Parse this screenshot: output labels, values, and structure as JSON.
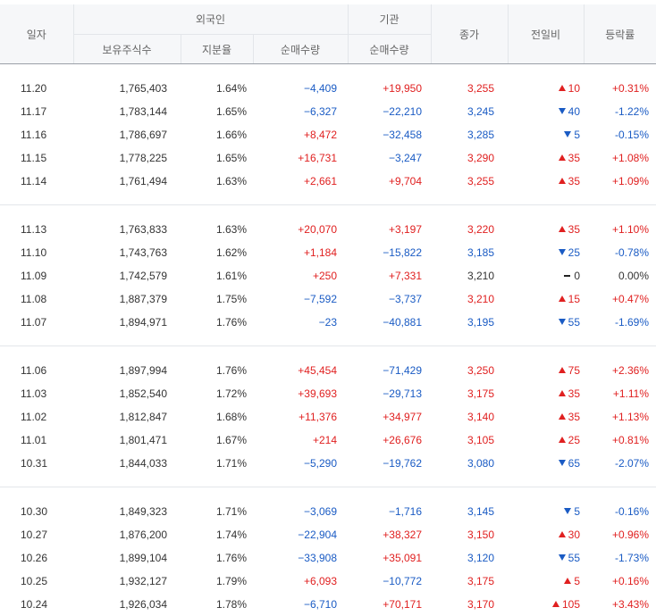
{
  "header": {
    "date": "일자",
    "foreign": "외국인",
    "institution": "기관",
    "close": "종가",
    "change": "전일비",
    "rate": "등락률",
    "holdings": "보유주식수",
    "ratio": "지분율",
    "foreign_net": "순매수량",
    "inst_net": "순매수량"
  },
  "colors": {
    "up": "#e02020",
    "down": "#1a5bc4",
    "neutral": "#333333"
  },
  "icons": {
    "up": "triangle-up-icon",
    "down": "triangle-down-icon",
    "flat": "dash-icon"
  },
  "groups": [
    [
      {
        "date": "11.20",
        "holdings": "1,765,403",
        "ratio": "1.64%",
        "foreign_net": "−4,409",
        "inst_net": "+19,950",
        "close": "3,255",
        "dir": "up",
        "change": "10",
        "rate": "+0.31%"
      },
      {
        "date": "11.17",
        "holdings": "1,783,144",
        "ratio": "1.65%",
        "foreign_net": "−6,327",
        "inst_net": "−22,210",
        "close": "3,245",
        "dir": "down",
        "change": "40",
        "rate": "-1.22%"
      },
      {
        "date": "11.16",
        "holdings": "1,786,697",
        "ratio": "1.66%",
        "foreign_net": "+8,472",
        "inst_net": "−32,458",
        "close": "3,285",
        "dir": "down",
        "change": "5",
        "rate": "-0.15%"
      },
      {
        "date": "11.15",
        "holdings": "1,778,225",
        "ratio": "1.65%",
        "foreign_net": "+16,731",
        "inst_net": "−3,247",
        "close": "3,290",
        "dir": "up",
        "change": "35",
        "rate": "+1.08%"
      },
      {
        "date": "11.14",
        "holdings": "1,761,494",
        "ratio": "1.63%",
        "foreign_net": "+2,661",
        "inst_net": "+9,704",
        "close": "3,255",
        "dir": "up",
        "change": "35",
        "rate": "+1.09%"
      }
    ],
    [
      {
        "date": "11.13",
        "holdings": "1,763,833",
        "ratio": "1.63%",
        "foreign_net": "+20,070",
        "inst_net": "+3,197",
        "close": "3,220",
        "dir": "up",
        "change": "35",
        "rate": "+1.10%"
      },
      {
        "date": "11.10",
        "holdings": "1,743,763",
        "ratio": "1.62%",
        "foreign_net": "+1,184",
        "inst_net": "−15,822",
        "close": "3,185",
        "dir": "down",
        "change": "25",
        "rate": "-0.78%"
      },
      {
        "date": "11.09",
        "holdings": "1,742,579",
        "ratio": "1.61%",
        "foreign_net": "+250",
        "inst_net": "+7,331",
        "close": "3,210",
        "dir": "flat",
        "change": "0",
        "rate": "0.00%"
      },
      {
        "date": "11.08",
        "holdings": "1,887,379",
        "ratio": "1.75%",
        "foreign_net": "−7,592",
        "inst_net": "−3,737",
        "close": "3,210",
        "dir": "up",
        "change": "15",
        "rate": "+0.47%"
      },
      {
        "date": "11.07",
        "holdings": "1,894,971",
        "ratio": "1.76%",
        "foreign_net": "−23",
        "inst_net": "−40,881",
        "close": "3,195",
        "dir": "down",
        "change": "55",
        "rate": "-1.69%"
      }
    ],
    [
      {
        "date": "11.06",
        "holdings": "1,897,994",
        "ratio": "1.76%",
        "foreign_net": "+45,454",
        "inst_net": "−71,429",
        "close": "3,250",
        "dir": "up",
        "change": "75",
        "rate": "+2.36%"
      },
      {
        "date": "11.03",
        "holdings": "1,852,540",
        "ratio": "1.72%",
        "foreign_net": "+39,693",
        "inst_net": "−29,713",
        "close": "3,175",
        "dir": "up",
        "change": "35",
        "rate": "+1.11%"
      },
      {
        "date": "11.02",
        "holdings": "1,812,847",
        "ratio": "1.68%",
        "foreign_net": "+11,376",
        "inst_net": "+34,977",
        "close": "3,140",
        "dir": "up",
        "change": "35",
        "rate": "+1.13%"
      },
      {
        "date": "11.01",
        "holdings": "1,801,471",
        "ratio": "1.67%",
        "foreign_net": "+214",
        "inst_net": "+26,676",
        "close": "3,105",
        "dir": "up",
        "change": "25",
        "rate": "+0.81%"
      },
      {
        "date": "10.31",
        "holdings": "1,844,033",
        "ratio": "1.71%",
        "foreign_net": "−5,290",
        "inst_net": "−19,762",
        "close": "3,080",
        "dir": "down",
        "change": "65",
        "rate": "-2.07%"
      }
    ],
    [
      {
        "date": "10.30",
        "holdings": "1,849,323",
        "ratio": "1.71%",
        "foreign_net": "−3,069",
        "inst_net": "−1,716",
        "close": "3,145",
        "dir": "down",
        "change": "5",
        "rate": "-0.16%"
      },
      {
        "date": "10.27",
        "holdings": "1,876,200",
        "ratio": "1.74%",
        "foreign_net": "−22,904",
        "inst_net": "+38,327",
        "close": "3,150",
        "dir": "up",
        "change": "30",
        "rate": "+0.96%"
      },
      {
        "date": "10.26",
        "holdings": "1,899,104",
        "ratio": "1.76%",
        "foreign_net": "−33,908",
        "inst_net": "+35,091",
        "close": "3,120",
        "dir": "down",
        "change": "55",
        "rate": "-1.73%"
      },
      {
        "date": "10.25",
        "holdings": "1,932,127",
        "ratio": "1.79%",
        "foreign_net": "+6,093",
        "inst_net": "−10,772",
        "close": "3,175",
        "dir": "up",
        "change": "5",
        "rate": "+0.16%"
      },
      {
        "date": "10.24",
        "holdings": "1,926,034",
        "ratio": "1.78%",
        "foreign_net": "−6,710",
        "inst_net": "+70,171",
        "close": "3,170",
        "dir": "up",
        "change": "105",
        "rate": "+3.43%"
      }
    ]
  ]
}
